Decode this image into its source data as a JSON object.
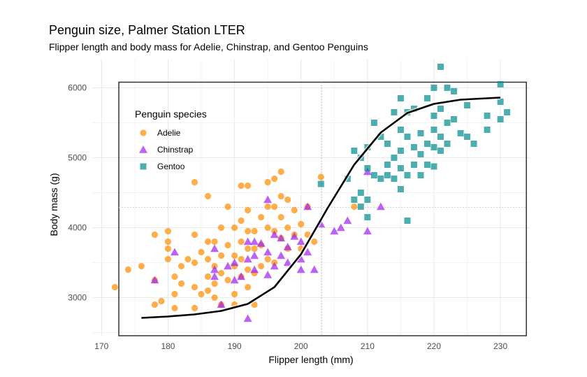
{
  "chart_data": {
    "type": "scatter",
    "title": "Penguin size, Palmer Station LTER",
    "subtitle": "Flipper length and body mass for Adelie, Chinstrap, and Gentoo Penguins",
    "xlabel": "Flipper length (mm)",
    "ylabel": "Body mass (g)",
    "xlim": [
      168.6,
      234.4
    ],
    "ylim": [
      2455,
      6405
    ],
    "x_ticks": [
      170,
      180,
      190,
      200,
      210,
      220,
      230
    ],
    "y_ticks": [
      3000,
      4000,
      5000,
      6000
    ],
    "grid": true,
    "legend": {
      "title": "Penguin species",
      "position": "top-left inside"
    },
    "series": [
      {
        "name": "Adelie",
        "marker": "circle",
        "color": "#ff8c00",
        "points": [
          [
            172,
            3150
          ],
          [
            174,
            3400
          ],
          [
            176,
            3450
          ],
          [
            178,
            3900
          ],
          [
            178,
            3250
          ],
          [
            178,
            2900
          ],
          [
            179,
            2950
          ],
          [
            180,
            3950
          ],
          [
            180,
            3800
          ],
          [
            180,
            3700
          ],
          [
            180,
            3550
          ],
          [
            181,
            3050
          ],
          [
            181,
            3300
          ],
          [
            181,
            2850
          ],
          [
            182,
            3200
          ],
          [
            182,
            3450
          ],
          [
            183,
            3550
          ],
          [
            184,
            4650
          ],
          [
            184,
            3900
          ],
          [
            184,
            3500
          ],
          [
            184,
            3150
          ],
          [
            184,
            2850
          ],
          [
            185,
            3650
          ],
          [
            185,
            3050
          ],
          [
            186,
            4450
          ],
          [
            186,
            3800
          ],
          [
            186,
            3550
          ],
          [
            186,
            3300
          ],
          [
            186,
            3100
          ],
          [
            187,
            3800
          ],
          [
            187,
            3450
          ],
          [
            187,
            3200
          ],
          [
            187,
            3000
          ],
          [
            188,
            2900
          ],
          [
            188,
            3350
          ],
          [
            188,
            3600
          ],
          [
            188,
            4000
          ],
          [
            189,
            4300
          ],
          [
            189,
            3750
          ],
          [
            189,
            3250
          ],
          [
            190,
            4000
          ],
          [
            190,
            3600
          ],
          [
            190,
            3450
          ],
          [
            190,
            3050
          ],
          [
            190,
            2900
          ],
          [
            191,
            4600
          ],
          [
            191,
            4100
          ],
          [
            191,
            3800
          ],
          [
            191,
            3550
          ],
          [
            191,
            3300
          ],
          [
            192,
            4600
          ],
          [
            192,
            4250
          ],
          [
            192,
            3950
          ],
          [
            192,
            3700
          ],
          [
            192,
            3400
          ],
          [
            192,
            3150
          ],
          [
            193,
            3950
          ],
          [
            193,
            3700
          ],
          [
            193,
            3350
          ],
          [
            193,
            2900
          ],
          [
            194,
            4150
          ],
          [
            194,
            3750
          ],
          [
            194,
            3450
          ],
          [
            195,
            4650
          ],
          [
            195,
            4300
          ],
          [
            195,
            4000
          ],
          [
            195,
            3550
          ],
          [
            196,
            4700
          ],
          [
            196,
            4300
          ],
          [
            196,
            3950
          ],
          [
            196,
            3500
          ],
          [
            197,
            4800
          ],
          [
            197,
            4450
          ],
          [
            197,
            4150
          ],
          [
            197,
            3850
          ],
          [
            198,
            4400
          ],
          [
            198,
            4000
          ],
          [
            198,
            3700
          ],
          [
            199,
            4250
          ],
          [
            199,
            3900
          ],
          [
            200,
            4050
          ],
          [
            200,
            3700
          ],
          [
            201,
            4300
          ],
          [
            201,
            3900
          ],
          [
            202,
            3800
          ],
          [
            203,
            4725
          ],
          [
            208,
            4300
          ]
        ]
      },
      {
        "name": "Chinstrap",
        "marker": "triangle",
        "color": "#a020f0",
        "points": [
          [
            178,
            3250
          ],
          [
            181,
            3650
          ],
          [
            187,
            3700
          ],
          [
            187,
            3400
          ],
          [
            187,
            3300
          ],
          [
            188,
            2900
          ],
          [
            189,
            3450
          ],
          [
            190,
            3500
          ],
          [
            190,
            3250
          ],
          [
            191,
            3300
          ],
          [
            192,
            3800
          ],
          [
            192,
            3550
          ],
          [
            192,
            2700
          ],
          [
            193,
            3600
          ],
          [
            193,
            3800
          ],
          [
            193,
            3400
          ],
          [
            194,
            3775
          ],
          [
            195,
            4400
          ],
          [
            195,
            3650
          ],
          [
            195,
            3325
          ],
          [
            196,
            3900
          ],
          [
            196,
            3450
          ],
          [
            197,
            3850
          ],
          [
            197,
            3600
          ],
          [
            198,
            3725
          ],
          [
            198,
            3500
          ],
          [
            199,
            3875
          ],
          [
            200,
            3800
          ],
          [
            200,
            3550
          ],
          [
            200,
            3400
          ],
          [
            201,
            4300
          ],
          [
            201,
            3650
          ],
          [
            202,
            3400
          ],
          [
            203,
            4050
          ],
          [
            205,
            3950
          ],
          [
            206,
            4000
          ],
          [
            207,
            4100
          ],
          [
            210,
            4800
          ],
          [
            210,
            3950
          ],
          [
            212,
            4300
          ]
        ]
      },
      {
        "name": "Gentoo",
        "marker": "square",
        "color": "#008b8b",
        "points": [
          [
            203,
            4625
          ],
          [
            207,
            4700
          ],
          [
            208,
            5100
          ],
          [
            208,
            4400
          ],
          [
            209,
            5000
          ],
          [
            209,
            4300
          ],
          [
            209,
            4500
          ],
          [
            210,
            5150
          ],
          [
            210,
            4850
          ],
          [
            210,
            4400
          ],
          [
            210,
            4150
          ],
          [
            211,
            5500
          ],
          [
            211,
            4750
          ],
          [
            212,
            5300
          ],
          [
            212,
            4700
          ],
          [
            213,
            5200
          ],
          [
            213,
            4900
          ],
          [
            213,
            4750
          ],
          [
            214,
            5650
          ],
          [
            214,
            5000
          ],
          [
            214,
            4700
          ],
          [
            215,
            5850
          ],
          [
            215,
            5400
          ],
          [
            215,
            5100
          ],
          [
            215,
            4850
          ],
          [
            215,
            4550
          ],
          [
            216,
            5650
          ],
          [
            216,
            5300
          ],
          [
            216,
            4750
          ],
          [
            216,
            4100
          ],
          [
            217,
            5700
          ],
          [
            217,
            5150
          ],
          [
            217,
            4900
          ],
          [
            218,
            5350
          ],
          [
            218,
            5050
          ],
          [
            218,
            4750
          ],
          [
            219,
            5850
          ],
          [
            219,
            5200
          ],
          [
            219,
            4900
          ],
          [
            220,
            6000
          ],
          [
            220,
            5600
          ],
          [
            220,
            5400
          ],
          [
            220,
            5150
          ],
          [
            220,
            4875
          ],
          [
            221,
            6300
          ],
          [
            221,
            5700
          ],
          [
            221,
            5300
          ],
          [
            221,
            5100
          ],
          [
            222,
            6000
          ],
          [
            222,
            5500
          ],
          [
            222,
            5200
          ],
          [
            223,
            5950
          ],
          [
            223,
            5550
          ],
          [
            224,
            5350
          ],
          [
            225,
            5750
          ],
          [
            225,
            5300
          ],
          [
            226,
            5200
          ],
          [
            228,
            5600
          ],
          [
            228,
            5400
          ],
          [
            230,
            6050
          ],
          [
            230,
            5800
          ],
          [
            230,
            5550
          ],
          [
            231,
            5650
          ]
        ]
      }
    ],
    "trend_line": {
      "name": "fit",
      "color": "#000000",
      "points": [
        [
          176,
          2710
        ],
        [
          180,
          2730
        ],
        [
          184,
          2760
        ],
        [
          188,
          2810
        ],
        [
          192,
          2910
        ],
        [
          196,
          3150
        ],
        [
          200,
          3620
        ],
        [
          204,
          4280
        ],
        [
          208,
          4900
        ],
        [
          212,
          5360
        ],
        [
          216,
          5640
        ],
        [
          220,
          5770
        ],
        [
          224,
          5830
        ],
        [
          230,
          5860
        ]
      ]
    },
    "reference": {
      "x": 203.1,
      "y": 4290,
      "box_x": [
        172.6,
        233.9
      ],
      "box_y": [
        2455,
        6080
      ]
    }
  }
}
